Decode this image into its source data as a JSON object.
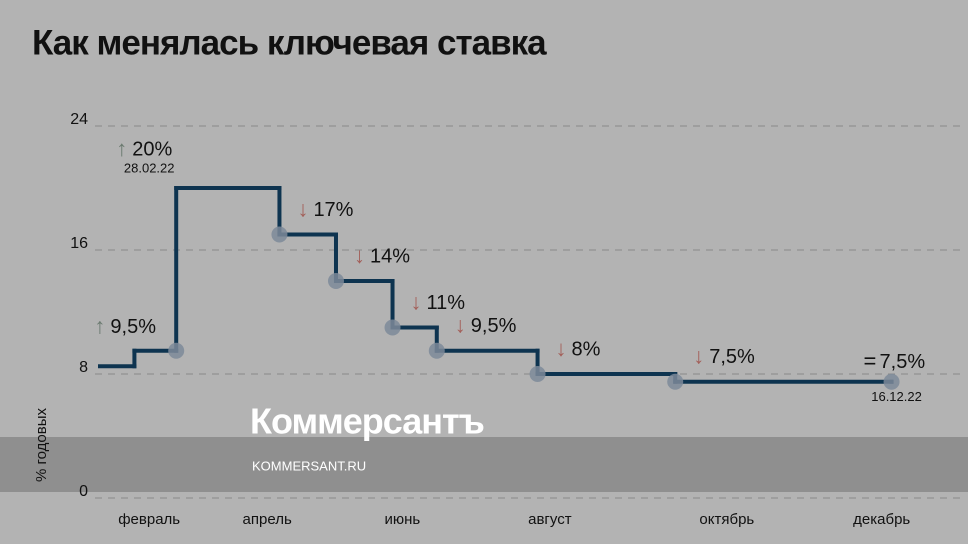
{
  "chart_data": {
    "type": "step",
    "title": "Как менялась ключевая ставка",
    "y_label": "% годовых",
    "series": [
      {
        "name": "ключевая ставка",
        "color": "#0e3450",
        "x": [
          28,
          42,
          59,
          101,
          124,
          147,
          165,
          206,
          262,
          350
        ],
        "values": [
          8.5,
          9.5,
          20,
          17,
          14,
          11,
          9.5,
          8,
          7.5,
          7.5
        ],
        "value_labels": [
          null,
          "9,5%",
          "20%",
          "17%",
          "14%",
          "11%",
          "9,5%",
          "8%",
          "7,5%",
          "7,5%"
        ],
        "arrows": [
          null,
          "↑",
          "↑",
          "↓",
          "↓",
          "↓",
          "↓",
          "↓",
          "↓",
          "="
        ],
        "date_labels": [
          null,
          null,
          "28.02.22",
          null,
          null,
          null,
          null,
          null,
          null,
          "16.12.22"
        ]
      }
    ],
    "xlim": [
      28,
      375
    ],
    "xticks": [
      {
        "value": 48,
        "label": "февраль"
      },
      {
        "value": 96,
        "label": "апрель"
      },
      {
        "value": 151,
        "label": "июнь"
      },
      {
        "value": 211,
        "label": "август"
      },
      {
        "value": 283,
        "label": "октябрь"
      },
      {
        "value": 346,
        "label": "декабрь"
      }
    ],
    "ylim": [
      0,
      24
    ],
    "yticks": [
      0,
      8,
      16,
      24
    ],
    "grid": true
  },
  "watermark": {
    "logo": "Коммерсантъ",
    "url": "KOMMERSANT.RU"
  }
}
